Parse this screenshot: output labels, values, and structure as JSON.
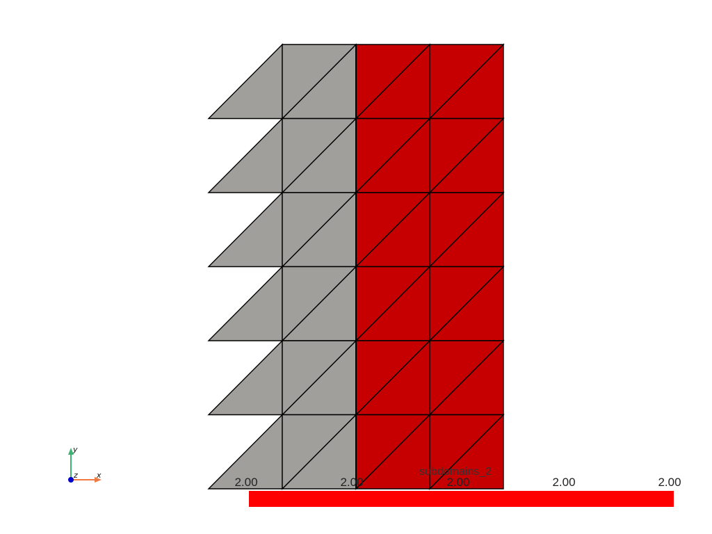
{
  "scene": {
    "mesh": {
      "columns": 4,
      "rows": 6,
      "partial_first_column": true,
      "region_colors": [
        "#a19f9b",
        "#c60000"
      ],
      "region_columns": [
        2,
        2
      ],
      "edge_color": "#000000"
    },
    "colorbar": {
      "title": "subdomains_2",
      "color": "#ff0000",
      "tick_labels": [
        "2.00",
        "2.00",
        "2.00",
        "2.00",
        "2.00"
      ]
    },
    "axes_widget": {
      "x_label": "x",
      "y_label": "y",
      "z_label": "z",
      "x_color": "#f07a43",
      "y_color": "#3cb371",
      "z_color": "#0000cc"
    }
  }
}
